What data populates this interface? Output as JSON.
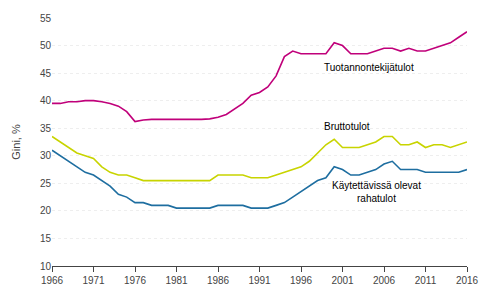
{
  "chart_data": {
    "type": "line",
    "x": [
      1966,
      1967,
      1968,
      1969,
      1970,
      1971,
      1972,
      1973,
      1974,
      1975,
      1976,
      1977,
      1978,
      1979,
      1980,
      1981,
      1982,
      1983,
      1984,
      1985,
      1986,
      1987,
      1988,
      1989,
      1990,
      1991,
      1992,
      1993,
      1994,
      1995,
      1996,
      1997,
      1998,
      1999,
      2000,
      2001,
      2002,
      2003,
      2004,
      2005,
      2006,
      2007,
      2008,
      2009,
      2010,
      2011,
      2012,
      2013,
      2014,
      2015,
      2016
    ],
    "series": [
      {
        "color": "#c0007a",
        "values": [
          39.5,
          39.5,
          39.8,
          39.8,
          40.0,
          40.0,
          39.8,
          39.5,
          39.0,
          38.0,
          36.2,
          36.5,
          36.6,
          36.6,
          36.5,
          36.6,
          36.5,
          36.5,
          36.6,
          36.7,
          37.0,
          37.5,
          38.5,
          39.5,
          41.0,
          41.5,
          42.5,
          44.5,
          48.0,
          49.0,
          48.5,
          48.5,
          48.5,
          48.5,
          50.5,
          50.0,
          48.5,
          48.5,
          48.5,
          49.0,
          49.5,
          49.5,
          49.0,
          49.5,
          49.0,
          49.0,
          49.5,
          50.0,
          50.5,
          51.5,
          52.5
        ]
      },
      {
        "color": "#c8d400",
        "values": [
          33.5,
          32.5,
          31.5,
          30.5,
          30.0,
          29.5,
          28.0,
          27.0,
          26.5,
          26.5,
          26.0,
          25.5,
          25.5,
          25.5,
          25.5,
          25.5,
          25.5,
          25.5,
          25.5,
          25.5,
          26.5,
          26.5,
          26.5,
          26.5,
          26.0,
          26.0,
          26.0,
          26.5,
          27.0,
          27.5,
          28.0,
          29.0,
          30.5,
          32.0,
          33.0,
          31.5,
          31.5,
          31.5,
          32.0,
          32.5,
          33.5,
          33.5,
          32.0,
          32.0,
          32.5,
          31.5,
          32.0,
          32.0,
          31.5,
          32.0,
          32.5
        ]
      },
      {
        "color": "#1e6ea0",
        "values": [
          31.0,
          30.0,
          29.0,
          28.0,
          27.0,
          26.5,
          25.5,
          24.5,
          23.0,
          22.5,
          21.5,
          21.5,
          21.0,
          21.0,
          21.0,
          20.5,
          20.5,
          20.5,
          20.5,
          20.5,
          21.0,
          21.0,
          21.0,
          21.0,
          20.5,
          20.5,
          20.5,
          21.0,
          21.5,
          22.5,
          23.5,
          24.5,
          25.5,
          26.0,
          28.0,
          27.5,
          26.5,
          26.5,
          27.0,
          27.5,
          28.5,
          29.0,
          27.5,
          27.5,
          27.5,
          27.0,
          27.0,
          27.0,
          27.0,
          27.0,
          27.5
        ]
      }
    ],
    "ylabel": "Gini, %",
    "xlim": [
      1966,
      2016
    ],
    "xticks": [
      1966,
      1971,
      1976,
      1981,
      1986,
      1991,
      1996,
      2001,
      2006,
      2011,
      2016
    ],
    "ylim": [
      10,
      55
    ],
    "yticks": [
      10,
      15,
      20,
      25,
      30,
      35,
      40,
      45,
      50,
      55
    ],
    "grid": true,
    "annotations": [
      {
        "text": "Tuotannontekijätulot",
        "x": 1998.5,
        "y": 46.0
      },
      {
        "text": "Bruttotulot",
        "x": 1998.5,
        "y": 35.3
      },
      {
        "text": "Käytettävissä olevat\nrahatulot",
        "x": 1999.5,
        "y": 23.5
      }
    ]
  }
}
